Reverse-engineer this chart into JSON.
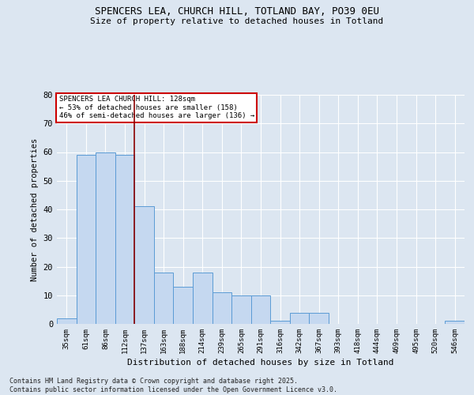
{
  "title_line1": "SPENCERS LEA, CHURCH HILL, TOTLAND BAY, PO39 0EU",
  "title_line2": "Size of property relative to detached houses in Totland",
  "categories": [
    "35sqm",
    "61sqm",
    "86sqm",
    "112sqm",
    "137sqm",
    "163sqm",
    "188sqm",
    "214sqm",
    "239sqm",
    "265sqm",
    "291sqm",
    "316sqm",
    "342sqm",
    "367sqm",
    "393sqm",
    "418sqm",
    "444sqm",
    "469sqm",
    "495sqm",
    "520sqm",
    "546sqm"
  ],
  "values": [
    2,
    59,
    60,
    59,
    41,
    18,
    13,
    18,
    11,
    10,
    10,
    1,
    4,
    4,
    0,
    0,
    0,
    0,
    0,
    0,
    1
  ],
  "bar_color": "#c5d8f0",
  "bar_edge_color": "#5b9bd5",
  "background_color": "#dce6f1",
  "grid_color": "#ffffff",
  "vline_pos": 3.5,
  "vline_color": "#8b0000",
  "ylabel": "Number of detached properties",
  "xlabel": "Distribution of detached houses by size in Totland",
  "ylim": [
    0,
    80
  ],
  "yticks": [
    0,
    10,
    20,
    30,
    40,
    50,
    60,
    70,
    80
  ],
  "annotation_title": "SPENCERS LEA CHURCH HILL: 128sqm",
  "annotation_line2": "← 53% of detached houses are smaller (158)",
  "annotation_line3": "46% of semi-detached houses are larger (136) →",
  "annotation_box_color": "#ffffff",
  "annotation_edge_color": "#cc0000",
  "footer_line1": "Contains HM Land Registry data © Crown copyright and database right 2025.",
  "footer_line2": "Contains public sector information licensed under the Open Government Licence v3.0."
}
